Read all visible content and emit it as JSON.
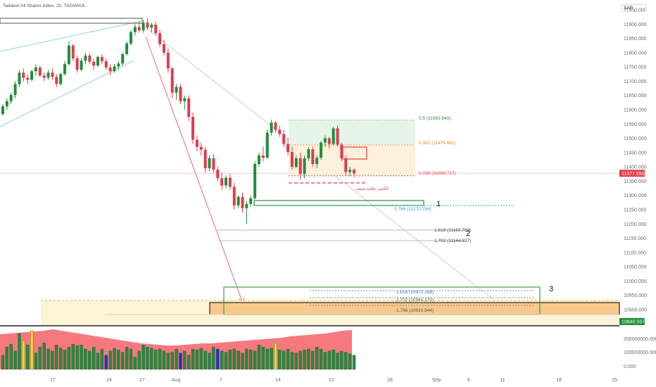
{
  "header": {
    "title": "Tadawul All Shares index, 2h, TADAWUL",
    "currency": "SAR"
  },
  "colors": {
    "up": "#1f8f3a",
    "down": "#e23a4f",
    "fib_green": "#2e8b3a",
    "fib_orange": "#f0a030",
    "fib_red": "#e04050",
    "fib_teal": "#2aa7b8",
    "price_tag": "#e23a4f"
  },
  "chart_data": {
    "type": "candlestick",
    "y_ticks": [
      "11950.000",
      "11900.000",
      "11850.000",
      "11800.000",
      "11750.000",
      "11700.000",
      "11650.000",
      "11600.000",
      "11550.000",
      "11500.000",
      "11450.000",
      "11400.000",
      "11350.000",
      "11300.000",
      "11250.000",
      "11200.000",
      "11150.000",
      "11100.000",
      "11050.000",
      "11000.000",
      "10950.000",
      "10900.000"
    ],
    "x_ticks": [
      "17",
      "24",
      "27",
      "Aug",
      "7",
      "14",
      "21",
      "28",
      "Sep",
      "6",
      "11",
      "18",
      "25"
    ],
    "volume_ticks": [
      "200000000.000",
      "100000000.000",
      "0.000"
    ],
    "current_price": "11377.550",
    "target_price": "10840.597",
    "fib_levels": [
      {
        "label": "0.5 (11563.940)",
        "value": 11563.94,
        "color": "green"
      },
      {
        "label": "0.382 (11476.681)",
        "value": 11476.681,
        "color": "orange"
      },
      {
        "label": "0.236 (11368.717)",
        "value": 11368.717,
        "color": "red"
      },
      {
        "label": "0.786 (11270.794)",
        "value": 11270.794,
        "color": "teal"
      },
      {
        "label": "1.618 (11183.769)",
        "value": 11183.769,
        "color": "gray"
      },
      {
        "label": "1.702 (11144.837)",
        "value": 11144.837,
        "color": "gray"
      },
      {
        "label": "1.618 (10971.398)",
        "value": 10971.398,
        "color": "blue"
      },
      {
        "label": "1.702 (10941.170)",
        "value": 10941.17,
        "color": "gray"
      },
      {
        "label": "1.786 (10910.944)",
        "value": 10910.944,
        "color": "gray"
      }
    ],
    "annotation_ar": "الكسر علامة ضعف",
    "wave_labels": [
      "1",
      "2",
      "3"
    ],
    "candles": [
      [
        11585,
        11620,
        11580,
        11612
      ],
      [
        11612,
        11640,
        11600,
        11630
      ],
      [
        11630,
        11660,
        11620,
        11652
      ],
      [
        11652,
        11700,
        11640,
        11690
      ],
      [
        11690,
        11740,
        11680,
        11730
      ],
      [
        11730,
        11745,
        11700,
        11712
      ],
      [
        11712,
        11725,
        11690,
        11705
      ],
      [
        11705,
        11740,
        11700,
        11735
      ],
      [
        11735,
        11760,
        11720,
        11748
      ],
      [
        11748,
        11755,
        11715,
        11720
      ],
      [
        11720,
        11730,
        11700,
        11712
      ],
      [
        11712,
        11740,
        11705,
        11730
      ],
      [
        11730,
        11745,
        11705,
        11715
      ],
      [
        11715,
        11725,
        11680,
        11690
      ],
      [
        11690,
        11730,
        11685,
        11725
      ],
      [
        11725,
        11770,
        11720,
        11760
      ],
      [
        11760,
        11840,
        11755,
        11825
      ],
      [
        11825,
        11830,
        11770,
        11780
      ],
      [
        11780,
        11790,
        11730,
        11740
      ],
      [
        11740,
        11780,
        11735,
        11772
      ],
      [
        11772,
        11800,
        11760,
        11790
      ],
      [
        11790,
        11800,
        11760,
        11768
      ],
      [
        11768,
        11780,
        11740,
        11755
      ],
      [
        11755,
        11790,
        11750,
        11785
      ],
      [
        11785,
        11795,
        11760,
        11770
      ],
      [
        11770,
        11780,
        11740,
        11748
      ],
      [
        11748,
        11760,
        11720,
        11735
      ],
      [
        11735,
        11760,
        11730,
        11752
      ],
      [
        11752,
        11770,
        11740,
        11762
      ],
      [
        11762,
        11800,
        11755,
        11795
      ],
      [
        11795,
        11840,
        11790,
        11832
      ],
      [
        11832,
        11880,
        11825,
        11872
      ],
      [
        11872,
        11900,
        11860,
        11890
      ],
      [
        11890,
        11910,
        11870,
        11878
      ],
      [
        11878,
        11915,
        11870,
        11905
      ],
      [
        11905,
        11920,
        11880,
        11888
      ],
      [
        11888,
        11905,
        11870,
        11898
      ],
      [
        11898,
        11910,
        11860,
        11868
      ],
      [
        11868,
        11880,
        11820,
        11830
      ],
      [
        11830,
        11845,
        11790,
        11800
      ],
      [
        11800,
        11815,
        11730,
        11745
      ],
      [
        11745,
        11750,
        11640,
        11660
      ],
      [
        11660,
        11690,
        11635,
        11680
      ],
      [
        11680,
        11690,
        11620,
        11630
      ],
      [
        11630,
        11650,
        11600,
        11640
      ],
      [
        11640,
        11650,
        11560,
        11575
      ],
      [
        11575,
        11590,
        11480,
        11495
      ],
      [
        11495,
        11510,
        11455,
        11470
      ],
      [
        11470,
        11485,
        11440,
        11460
      ],
      [
        11460,
        11470,
        11380,
        11395
      ],
      [
        11395,
        11440,
        11385,
        11430
      ],
      [
        11430,
        11445,
        11380,
        11390
      ],
      [
        11390,
        11400,
        11350,
        11360
      ],
      [
        11360,
        11380,
        11320,
        11335
      ],
      [
        11335,
        11370,
        11325,
        11362
      ],
      [
        11362,
        11375,
        11320,
        11330
      ],
      [
        11330,
        11345,
        11250,
        11265
      ],
      [
        11265,
        11300,
        11255,
        11295
      ],
      [
        11295,
        11310,
        11240,
        11255
      ],
      [
        11255,
        11280,
        11200,
        11270
      ],
      [
        11270,
        11300,
        11260,
        11290
      ],
      [
        11290,
        11420,
        11285,
        11410
      ],
      [
        11410,
        11450,
        11400,
        11440
      ],
      [
        11440,
        11470,
        11420,
        11432
      ],
      [
        11432,
        11530,
        11428,
        11520
      ],
      [
        11520,
        11565,
        11510,
        11555
      ],
      [
        11555,
        11560,
        11520,
        11530
      ],
      [
        11530,
        11545,
        11505,
        11515
      ],
      [
        11515,
        11530,
        11470,
        11480
      ],
      [
        11480,
        11500,
        11440,
        11452
      ],
      [
        11452,
        11470,
        11390,
        11400
      ],
      [
        11400,
        11440,
        11395,
        11430
      ],
      [
        11430,
        11450,
        11355,
        11375
      ],
      [
        11375,
        11440,
        11360,
        11430
      ],
      [
        11430,
        11470,
        11420,
        11462
      ],
      [
        11462,
        11470,
        11400,
        11410
      ],
      [
        11410,
        11440,
        11395,
        11432
      ],
      [
        11432,
        11490,
        11425,
        11485
      ],
      [
        11485,
        11510,
        11470,
        11500
      ],
      [
        11500,
        11505,
        11465,
        11480
      ],
      [
        11480,
        11540,
        11475,
        11535
      ],
      [
        11535,
        11545,
        11470,
        11478
      ],
      [
        11478,
        11485,
        11420,
        11430
      ],
      [
        11430,
        11440,
        11370,
        11382
      ],
      [
        11382,
        11400,
        11368,
        11390
      ],
      [
        11390,
        11395,
        11365,
        11377
      ]
    ],
    "volumes": [
      0.35,
      0.55,
      0.62,
      0.45,
      0.88,
      0.7,
      0.6,
      0.95,
      0.4,
      0.55,
      0.65,
      0.5,
      0.45,
      0.6,
      0.52,
      0.48,
      0.55,
      0.62,
      0.58,
      0.6,
      0.5,
      0.45,
      0.55,
      0.4,
      0.5,
      0.35,
      0.45,
      0.52,
      0.48,
      0.42,
      0.55,
      0.5,
      0.3,
      0.45,
      0.6,
      0.55,
      0.52,
      0.48,
      0.5,
      0.45,
      0.4,
      0.42,
      0.5,
      0.4,
      0.45,
      0.35,
      0.5,
      0.48,
      0.52,
      0.45,
      0.4,
      0.55,
      0.5,
      0.45,
      0.42,
      0.48,
      0.5,
      0.45,
      0.4,
      0.5,
      0.48,
      0.45,
      0.6,
      0.55,
      0.5,
      0.52,
      0.65,
      0.48,
      0.45,
      0.5,
      0.42,
      0.4,
      0.45,
      0.48,
      0.5,
      0.45,
      0.55,
      0.5,
      0.42,
      0.45,
      0.48,
      0.4,
      0.45,
      0.42,
      0.38,
      0.35
    ]
  }
}
